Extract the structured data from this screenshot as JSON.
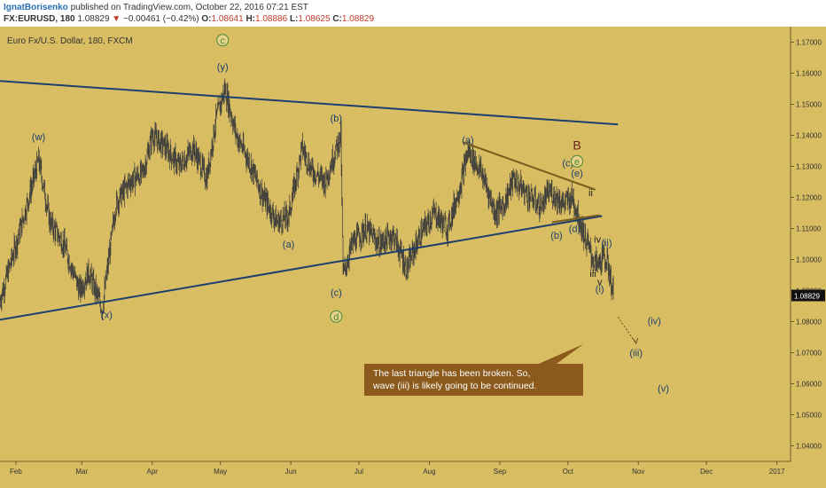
{
  "header": {
    "author": "IgnatBorisenko",
    "published_text": "published on TradingView.com, October 22, 2016 07:21 EST",
    "symbol": "FX:EURUSD, 180",
    "last": "1.08829",
    "arrow": "▼",
    "change": "−0.00461 (−0.42%)",
    "o_label": "O:",
    "o_value": "1.08641",
    "h_label": "H:",
    "h_value": "1.08886",
    "l_label": "L:",
    "l_value": "1.08625",
    "c_label": "C:",
    "c_value": "1.08829"
  },
  "chart_data": {
    "type": "candlestick",
    "title": "Euro Fx/U.S. Dollar, 180, FXCM",
    "ylim": [
      1.035,
      1.175
    ],
    "y_ticks": [
      "1.17000",
      "1.16000",
      "1.15000",
      "1.14000",
      "1.13000",
      "1.12000",
      "1.11000",
      "1.10000",
      "1.09000",
      "1.08000",
      "1.07000",
      "1.06000",
      "1.05000",
      "1.04000"
    ],
    "x_ticks": [
      "Feb",
      "Mar",
      "Apr",
      "May",
      "Jun",
      "Jul",
      "Aug",
      "Sep",
      "Oct",
      "Nov",
      "Dec",
      "2017"
    ],
    "last_price_label": "1.08829",
    "price_path": [
      [
        "2016-01-25",
        1.087
      ],
      [
        "2016-02-03",
        1.11
      ],
      [
        "2016-02-11",
        1.132
      ],
      [
        "2016-02-16",
        1.112
      ],
      [
        "2016-02-22",
        1.105
      ],
      [
        "2016-02-29",
        1.09
      ],
      [
        "2016-03-04",
        1.096
      ],
      [
        "2016-03-10",
        1.084
      ],
      [
        "2016-03-16",
        1.118
      ],
      [
        "2016-03-22",
        1.125
      ],
      [
        "2016-03-28",
        1.128
      ],
      [
        "2016-04-01",
        1.14
      ],
      [
        "2016-04-07",
        1.136
      ],
      [
        "2016-04-13",
        1.13
      ],
      [
        "2016-04-19",
        1.136
      ],
      [
        "2016-04-25",
        1.126
      ],
      [
        "2016-04-29",
        1.145
      ],
      [
        "2016-05-03",
        1.155
      ],
      [
        "2016-05-08",
        1.14
      ],
      [
        "2016-05-14",
        1.131
      ],
      [
        "2016-05-20",
        1.12
      ],
      [
        "2016-05-26",
        1.112
      ],
      [
        "2016-05-31",
        1.114
      ],
      [
        "2016-06-06",
        1.136
      ],
      [
        "2016-06-10",
        1.129
      ],
      [
        "2016-06-16",
        1.125
      ],
      [
        "2016-06-23",
        1.14
      ],
      [
        "2016-06-24",
        1.095
      ],
      [
        "2016-06-28",
        1.105
      ],
      [
        "2016-07-04",
        1.11
      ],
      [
        "2016-07-10",
        1.105
      ],
      [
        "2016-07-16",
        1.108
      ],
      [
        "2016-07-22",
        1.097
      ],
      [
        "2016-07-28",
        1.108
      ],
      [
        "2016-08-03",
        1.115
      ],
      [
        "2016-08-09",
        1.11
      ],
      [
        "2016-08-15",
        1.125
      ],
      [
        "2016-08-18",
        1.135
      ],
      [
        "2016-08-24",
        1.128
      ],
      [
        "2016-08-30",
        1.115
      ],
      [
        "2016-09-03",
        1.118
      ],
      [
        "2016-09-07",
        1.126
      ],
      [
        "2016-09-13",
        1.121
      ],
      [
        "2016-09-19",
        1.117
      ],
      [
        "2016-09-23",
        1.122
      ],
      [
        "2016-09-29",
        1.118
      ],
      [
        "2016-10-03",
        1.12
      ],
      [
        "2016-10-06",
        1.113
      ],
      [
        "2016-10-09",
        1.106
      ],
      [
        "2016-10-12",
        1.1
      ],
      [
        "2016-10-14",
        1.098
      ],
      [
        "2016-10-17",
        1.101
      ],
      [
        "2016-10-19",
        1.097
      ],
      [
        "2016-10-21",
        1.0883
      ]
    ],
    "trendlines": [
      {
        "name": "upper-triangle-line",
        "color": "#1c3f6e",
        "from": [
          "2016-01-25",
          1.1575
        ],
        "to": [
          "2016-10-23",
          1.1435
        ]
      },
      {
        "name": "lower-triangle-line",
        "color": "#1c3f6e",
        "from": [
          "2016-01-25",
          1.0806
        ],
        "to": [
          "2016-10-16",
          1.114
        ]
      },
      {
        "name": "small-triangle-upper",
        "color": "#7a5c1e",
        "from": [
          "2016-08-16",
          1.1377
        ],
        "to": [
          "2016-10-13",
          1.1225
        ]
      },
      {
        "name": "small-triangle-lower",
        "color": "#7a5c1e",
        "from": [
          "2016-09-24",
          1.112
        ],
        "to": [
          "2016-10-15",
          1.1143
        ]
      }
    ],
    "projection": {
      "from": [
        "2016-10-23",
        1.0815
      ],
      "to": [
        "2016-10-31",
        1.073
      ]
    },
    "annotations": [
      {
        "text": "(w)",
        "x": "2016-02-11",
        "y": 1.1385,
        "color": "#1c3f6e"
      },
      {
        "text": "(x)",
        "x": "2016-03-12",
        "y": 1.0812,
        "color": "#1c3f6e"
      },
      {
        "text": "(y)",
        "x": "2016-05-02",
        "y": 1.161,
        "color": "#1c3f6e"
      },
      {
        "text": "c",
        "x": "2016-05-02",
        "y": 1.1695,
        "color": "#4a8a3a",
        "circled": true
      },
      {
        "text": "(a)",
        "x": "2016-05-31",
        "y": 1.1038,
        "color": "#1c3f6e"
      },
      {
        "text": "(b)",
        "x": "2016-06-21",
        "y": 1.1445,
        "color": "#1c3f6e"
      },
      {
        "text": "(c)",
        "x": "2016-06-21",
        "y": 1.0883,
        "color": "#1c3f6e"
      },
      {
        "text": "d",
        "x": "2016-06-21",
        "y": 1.0805,
        "color": "#4a8a3a",
        "circled": true
      },
      {
        "text": "(a)",
        "x": "2016-08-18",
        "y": 1.1375,
        "color": "#1c3f6e"
      },
      {
        "text": "(b)",
        "x": "2016-09-26",
        "y": 1.1067,
        "color": "#1c3f6e"
      },
      {
        "text": "(c)",
        "x": "2016-10-01",
        "y": 1.13,
        "color": "#1c3f6e"
      },
      {
        "text": "(d)",
        "x": "2016-10-04",
        "y": 1.1089,
        "color": "#1c3f6e"
      },
      {
        "text": "(e)",
        "x": "2016-10-05",
        "y": 1.1267,
        "color": "#1c3f6e"
      },
      {
        "text": "e",
        "x": "2016-10-05",
        "y": 1.1305,
        "color": "#4a8a3a",
        "circled": true
      },
      {
        "text": "B",
        "x": "2016-10-05",
        "y": 1.1355,
        "color": "#6b2220",
        "big": true
      },
      {
        "text": "ii",
        "x": "2016-10-11",
        "y": 1.1205,
        "color": "#222222"
      },
      {
        "text": "i",
        "x": "2016-10-08",
        "y": 1.1053,
        "color": "#222222"
      },
      {
        "text": "iv",
        "x": "2016-10-14",
        "y": 1.1055,
        "color": "#222222"
      },
      {
        "text": "(ii)",
        "x": "2016-10-18",
        "y": 1.1043,
        "color": "#1c3f6e"
      },
      {
        "text": "iii",
        "x": "2016-10-12",
        "y": 1.0944,
        "color": "#222222"
      },
      {
        "text": "v",
        "x": "2016-10-15",
        "y": 1.0917,
        "color": "#222222"
      },
      {
        "text": "(i)",
        "x": "2016-10-15",
        "y": 1.0895,
        "color": "#1c3f6e"
      },
      {
        "text": "(iii)",
        "x": "2016-10-31",
        "y": 1.0688,
        "color": "#1c3f6e"
      },
      {
        "text": "(iv)",
        "x": "2016-11-08",
        "y": 1.0791,
        "color": "#1c3f6e"
      },
      {
        "text": "(v)",
        "x": "2016-11-12",
        "y": 1.0575,
        "color": "#1c3f6e"
      }
    ],
    "callout": {
      "line1": "The last triangle has been broken. So,",
      "line2": "wave (iii) is likely going to be continued.",
      "fill": "#8b5a1c",
      "text_color": "#ffffff"
    },
    "colors": {
      "background": "#d8bd63",
      "candle": "#3a3a3a",
      "axis_text": "#333333"
    }
  }
}
